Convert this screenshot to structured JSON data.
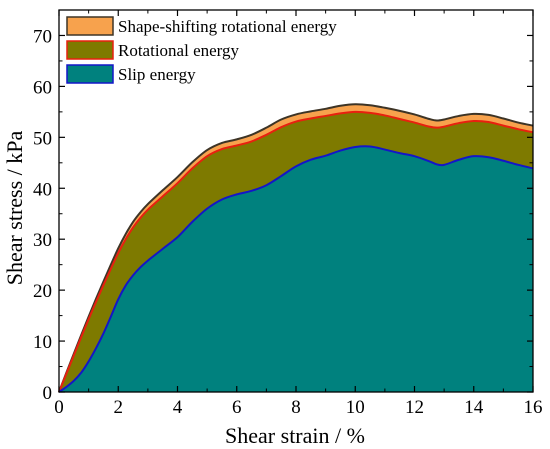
{
  "chart_data": {
    "type": "area",
    "xlabel": "Shear strain / %",
    "ylabel": "Shear stress / kPa",
    "xlim": [
      0,
      16
    ],
    "ylim": [
      0,
      75
    ],
    "xticks": [
      "0",
      "2",
      "4",
      "6",
      "8",
      "10",
      "12",
      "14",
      "16"
    ],
    "yticks": [
      "0",
      "10",
      "20",
      "30",
      "40",
      "50",
      "60",
      "70"
    ],
    "grid": false,
    "legend_position": "top-left",
    "x": [
      0,
      0.25,
      0.5,
      0.75,
      1,
      1.25,
      1.5,
      1.75,
      2,
      2.25,
      2.5,
      2.75,
      3,
      3.5,
      4,
      4.5,
      5,
      5.5,
      6,
      6.5,
      7,
      7.5,
      8,
      8.5,
      9,
      9.5,
      10,
      10.5,
      11,
      11.5,
      12,
      12.5,
      12.75,
      13,
      13.5,
      14,
      14.5,
      15,
      15.5,
      16
    ],
    "series": [
      {
        "name": "Shape-shifting rotational energy",
        "color": "#f7a24d",
        "line_color": "#3d3426",
        "values": [
          0,
          3.8,
          7.5,
          11.2,
          14.8,
          18.3,
          21.7,
          25.0,
          28.2,
          31.0,
          33.4,
          35.3,
          36.9,
          39.6,
          42.2,
          45.1,
          47.5,
          48.9,
          49.6,
          50.5,
          51.9,
          53.5,
          54.5,
          55.1,
          55.6,
          56.2,
          56.5,
          56.3,
          55.8,
          55.2,
          54.5,
          53.6,
          53.3,
          53.5,
          54.2,
          54.6,
          54.4,
          53.7,
          52.9,
          52.3
        ]
      },
      {
        "name": "Rotational energy",
        "color": "#7e7a00",
        "line_color": "#e8200f",
        "values": [
          0,
          3.6,
          7.2,
          10.8,
          14.3,
          17.7,
          21.0,
          24.2,
          27.3,
          30.0,
          32.3,
          34.2,
          35.8,
          38.4,
          41.0,
          43.9,
          46.3,
          47.7,
          48.4,
          49.2,
          50.5,
          52.0,
          53.1,
          53.7,
          54.2,
          54.7,
          55.0,
          54.8,
          54.3,
          53.6,
          52.9,
          52.1,
          51.9,
          52.1,
          52.8,
          53.2,
          53.0,
          52.3,
          51.6,
          51.0
        ]
      },
      {
        "name": "Slip energy",
        "color": "#00817e",
        "line_color": "#1416c8",
        "values": [
          0,
          1.0,
          2.2,
          3.8,
          6.0,
          8.6,
          11.5,
          14.8,
          18.2,
          20.9,
          22.9,
          24.5,
          25.8,
          28.1,
          30.4,
          33.4,
          36.0,
          37.8,
          38.8,
          39.5,
          40.6,
          42.4,
          44.3,
          45.6,
          46.4,
          47.4,
          48.1,
          48.2,
          47.6,
          46.9,
          46.3,
          45.3,
          44.7,
          44.6,
          45.6,
          46.3,
          46.1,
          45.4,
          44.6,
          43.9
        ]
      }
    ]
  }
}
